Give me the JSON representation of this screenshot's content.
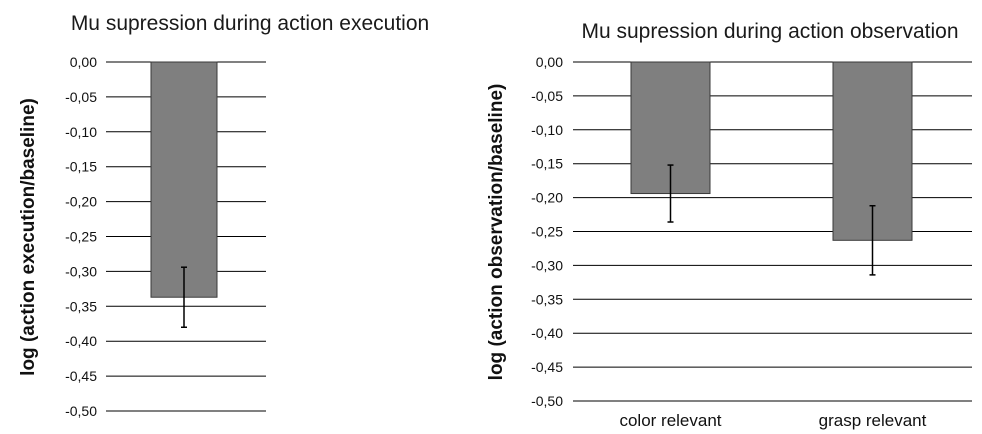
{
  "colors": {
    "bar_fill": "#7f7f7f",
    "bar_stroke": "#3a3a3a",
    "grid": "#000000",
    "error_bar": "#000000",
    "text": "#111111"
  },
  "chart_data": [
    {
      "type": "bar",
      "title": "Mu supression during action execution",
      "xlabel": "",
      "ylabel": "log (action execution/baseline)",
      "categories": [
        ""
      ],
      "values": [
        -0.337
      ],
      "error": [
        0.043
      ],
      "ylim": [
        -0.5,
        0.0
      ],
      "yticks": [
        0.0,
        -0.05,
        -0.1,
        -0.15,
        -0.2,
        -0.25,
        -0.3,
        -0.35,
        -0.4,
        -0.45,
        -0.5
      ],
      "ytick_labels": [
        "0,00",
        "-0,05",
        "-0,10",
        "-0,15",
        "-0,20",
        "-0,25",
        "-0,30",
        "-0,35",
        "-0,40",
        "-0,45",
        "-0,50"
      ],
      "grid": true,
      "legend": "none"
    },
    {
      "type": "bar",
      "title": "Mu supression during action observation",
      "xlabel": "",
      "ylabel": "log (action observation/baseline)",
      "categories": [
        "color relevant",
        "grasp relevant"
      ],
      "values": [
        -0.194,
        -0.263
      ],
      "error": [
        0.042,
        0.051
      ],
      "ylim": [
        -0.5,
        0.0
      ],
      "yticks": [
        0.0,
        -0.05,
        -0.1,
        -0.15,
        -0.2,
        -0.25,
        -0.3,
        -0.35,
        -0.4,
        -0.45,
        -0.5
      ],
      "ytick_labels": [
        "0,00",
        "-0,05",
        "-0,10",
        "-0,15",
        "-0,20",
        "-0,25",
        "-0,30",
        "-0,35",
        "-0,40",
        "-0,45",
        "-0,50"
      ],
      "grid": true,
      "legend": "none"
    }
  ]
}
